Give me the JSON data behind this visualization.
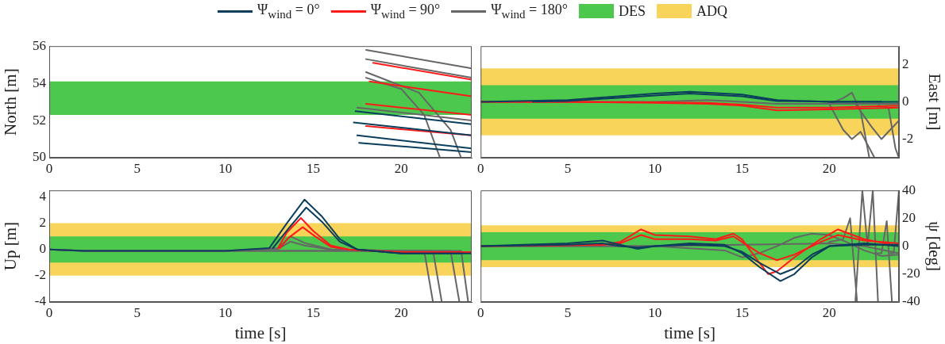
{
  "chart_data": [
    {
      "type": "line",
      "ylabel": "North [m]",
      "xlim": [
        0,
        24
      ],
      "xticks": [
        0,
        5,
        10,
        15,
        20
      ],
      "ylim": [
        50,
        56
      ],
      "yticks": [
        50,
        52,
        54,
        56
      ],
      "grid": false,
      "marker": "none",
      "line_style": "solid",
      "bands": [
        {
          "axis": "y",
          "from": 52.3,
          "to": 54.1,
          "color": "#4cc84c"
        }
      ],
      "series": [
        {
          "color": "#0b3d5c",
          "x": [
            17.5,
            24
          ],
          "values": [
            51.2,
            50.5
          ]
        },
        {
          "color": "#0b3d5c",
          "x": [
            17.3,
            24
          ],
          "values": [
            51.9,
            51.2
          ]
        },
        {
          "color": "#0b3d5c",
          "x": [
            17.6,
            24
          ],
          "values": [
            50.8,
            50.3
          ]
        },
        {
          "color": "#0b3d5c",
          "x": [
            17.4,
            24
          ],
          "values": [
            52.5,
            51.8
          ]
        },
        {
          "color": "#ff1a1a",
          "x": [
            18,
            24
          ],
          "values": [
            52.9,
            52.3
          ]
        },
        {
          "color": "#ff1a1a",
          "x": [
            18,
            24
          ],
          "values": [
            51.7,
            51.2
          ]
        },
        {
          "color": "#ff1a1a",
          "x": [
            18.2,
            24
          ],
          "values": [
            54.1,
            53.3
          ]
        },
        {
          "color": "#ff1a1a",
          "x": [
            18.4,
            24
          ],
          "values": [
            55.1,
            54.2
          ]
        },
        {
          "color": "#666666",
          "x": [
            18,
            24
          ],
          "values": [
            55.8,
            54.8
          ]
        },
        {
          "color": "#666666",
          "x": [
            18,
            24
          ],
          "values": [
            55.3,
            54.3
          ]
        },
        {
          "color": "#666666",
          "x": [
            17.5,
            24
          ],
          "values": [
            52.7,
            52.0
          ]
        },
        {
          "color": "#666666",
          "x": [
            18,
            20,
            21.3,
            22.2
          ],
          "values": [
            54.3,
            53.7,
            52.3,
            50
          ]
        },
        {
          "color": "#666666",
          "x": [
            18,
            21,
            22.8,
            23.4
          ],
          "values": [
            54.6,
            53.5,
            51.5,
            50
          ]
        }
      ]
    },
    {
      "type": "line",
      "y2label": "East [m]",
      "xlim": [
        0,
        24
      ],
      "xticks": [
        0,
        5,
        10,
        15,
        20
      ],
      "y2lim": [
        -3,
        3
      ],
      "y2ticks": [
        -2,
        0,
        2
      ],
      "grid": false,
      "marker": "none",
      "line_style": "solid",
      "legend": "top",
      "bands": [
        {
          "axis": "y2",
          "from": -0.9,
          "to": 0.9,
          "label": "DES",
          "color": "#4cc84c"
        },
        {
          "axis": "y2",
          "from": -1.8,
          "to": 1.8,
          "label": "ADQ",
          "color": "#f8d45a"
        }
      ],
      "series": [
        {
          "name": "Ψ$_{wind}$ = 0°",
          "axis": "y2",
          "color": "#0b3d5c",
          "x": [
            0,
            5,
            10,
            12,
            15,
            17,
            20,
            24
          ],
          "values": [
            0,
            0.1,
            0.45,
            0.55,
            0.4,
            0.1,
            0,
            0
          ]
        },
        {
          "axis": "y2",
          "color": "#0b3d5c",
          "x": [
            3,
            5,
            10,
            12,
            15,
            17,
            20,
            23
          ],
          "values": [
            0.02,
            0.05,
            0.35,
            0.45,
            0.3,
            0.05,
            0.02,
            0.02
          ]
        },
        {
          "name": "Ψ$_{wind}$ = 90°",
          "axis": "y2",
          "color": "#ff1a1a",
          "x": [
            0,
            5,
            10,
            13,
            15,
            17,
            20,
            24
          ],
          "values": [
            0,
            0,
            -0.05,
            -0.1,
            -0.2,
            -0.45,
            -0.4,
            -0.3
          ]
        },
        {
          "axis": "y2",
          "color": "#ff1a1a",
          "x": [
            0,
            5,
            10,
            13,
            15,
            17,
            20,
            24
          ],
          "values": [
            0,
            0,
            -0.02,
            -0.05,
            -0.15,
            -0.3,
            -0.3,
            -0.2
          ]
        },
        {
          "name": "Ψ$_{wind}$ = 180°",
          "axis": "y2",
          "color": "#666666",
          "x": [
            0,
            5,
            10,
            13,
            15,
            17,
            20,
            24
          ],
          "values": [
            0,
            0,
            0,
            0.1,
            0,
            -0.1,
            -0.1,
            -0.1
          ]
        },
        {
          "axis": "y2",
          "color": "#666666",
          "x": [
            20,
            20.8,
            21.3,
            21.8,
            22.3
          ],
          "values": [
            -0.1,
            0.2,
            0.5,
            -0.5,
            -3
          ]
        },
        {
          "axis": "y2",
          "color": "#666666",
          "x": [
            20,
            20.8,
            21.3,
            21.8,
            22.6
          ],
          "values": [
            -0.1,
            -1.5,
            -2.0,
            -1.6,
            -3
          ]
        },
        {
          "axis": "y2",
          "color": "#666666",
          "x": [
            21.5,
            22.4,
            23,
            23.5,
            24
          ],
          "values": [
            -0.1,
            -1.3,
            -2.0,
            -1.5,
            -1.0
          ]
        },
        {
          "axis": "y2",
          "color": "#666666",
          "x": [
            22.8,
            23.4,
            23.8,
            24
          ],
          "values": [
            -0.2,
            -0.3,
            -2.5,
            -3
          ]
        }
      ]
    },
    {
      "type": "line",
      "ylabel": "Up [m]",
      "xlabel": "time [s]",
      "xlim": [
        0,
        24
      ],
      "xticks": [
        0,
        5,
        10,
        15,
        20
      ],
      "ylim": [
        -4,
        4.5
      ],
      "yticks": [
        -4,
        -2,
        0,
        2,
        4
      ],
      "grid": false,
      "marker": "none",
      "line_style": "solid",
      "bands": [
        {
          "axis": "y",
          "from": -1,
          "to": 1,
          "color": "#4cc84c"
        },
        {
          "axis": "y",
          "from": -2,
          "to": 2,
          "color": "#f8d45a"
        }
      ],
      "series": [
        {
          "color": "#0b3d5c",
          "x": [
            0,
            2,
            10,
            12.5,
            13.5,
            14.5,
            15.5,
            16.5,
            17.5,
            20,
            24
          ],
          "values": [
            0,
            -0.1,
            -0.1,
            0.1,
            2,
            3.8,
            2.5,
            0.8,
            0,
            -0.3,
            -0.3
          ]
        },
        {
          "color": "#0b3d5c",
          "x": [
            12.7,
            13.6,
            14.6,
            15.5,
            16.5,
            17.5,
            20,
            23.5
          ],
          "values": [
            0.1,
            1.6,
            3.2,
            2.1,
            0.6,
            0,
            -0.3,
            -0.3
          ]
        },
        {
          "color": "#ff1a1a",
          "x": [
            13,
            13.5,
            14.3,
            15,
            16,
            17,
            20,
            24
          ],
          "values": [
            0.1,
            1.3,
            2.4,
            1.4,
            0.3,
            0,
            -0.25,
            -0.25
          ]
        },
        {
          "color": "#ff1a1a",
          "x": [
            13.1,
            13.6,
            14.4,
            15.1,
            16,
            17,
            20,
            24
          ],
          "values": [
            0.1,
            0.9,
            1.7,
            1.0,
            0.2,
            0,
            -0.2,
            -0.2
          ]
        },
        {
          "color": "#666666",
          "x": [
            0,
            2,
            10,
            13,
            13.7,
            14.5,
            16,
            20,
            21.3,
            21.8
          ],
          "values": [
            0,
            -0.1,
            -0.1,
            0.1,
            1.0,
            0.5,
            0,
            -0.1,
            -0.1,
            -4
          ]
        },
        {
          "color": "#666666",
          "x": [
            0,
            2,
            10,
            13,
            13.7,
            14.5,
            16,
            20,
            21.8,
            22.3
          ],
          "values": [
            0,
            -0.1,
            -0.1,
            0.05,
            0.6,
            0.3,
            0,
            -0.1,
            -0.1,
            -4
          ]
        },
        {
          "color": "#666666",
          "x": [
            0,
            2,
            10,
            16,
            20,
            22.8,
            23.3
          ],
          "values": [
            0,
            -0.1,
            -0.1,
            -0.1,
            -0.1,
            -0.1,
            -4
          ]
        },
        {
          "color": "#666666",
          "x": [
            0,
            2,
            10,
            16,
            20,
            23.4,
            23.8
          ],
          "values": [
            0,
            -0.1,
            -0.1,
            -0.1,
            -0.1,
            -0.1,
            -4
          ]
        }
      ]
    },
    {
      "type": "line",
      "y2label": "ψ [deg]",
      "xlabel": "time [s]",
      "xlim": [
        0,
        24
      ],
      "xticks": [
        0,
        5,
        10,
        15,
        20
      ],
      "y2lim": [
        -40,
        40
      ],
      "y2ticks": [
        -40,
        -20,
        0,
        20,
        40
      ],
      "grid": false,
      "marker": "none",
      "line_style": "solid",
      "bands": [
        {
          "axis": "y2",
          "from": -10,
          "to": 10,
          "color": "#4cc84c"
        },
        {
          "axis": "y2",
          "from": -15,
          "to": 15,
          "color": "#f8d45a"
        }
      ],
      "series": [
        {
          "axis": "y2",
          "color": "#0b3d5c",
          "x": [
            0,
            5,
            7,
            8,
            9,
            10,
            12,
            14,
            15,
            16,
            17.2,
            18,
            19,
            20,
            22,
            24
          ],
          "values": [
            0,
            2,
            4,
            1,
            -2,
            0,
            2,
            1,
            -5,
            -15,
            -25,
            -20,
            -8,
            0,
            2,
            0
          ]
        },
        {
          "axis": "y2",
          "color": "#0b3d5c",
          "x": [
            0,
            5,
            7,
            8,
            9,
            10,
            12,
            14,
            15,
            16,
            17.2,
            18,
            19,
            20,
            22,
            24
          ],
          "values": [
            0,
            1,
            2,
            0,
            -1,
            0,
            1,
            0,
            -4,
            -12,
            -20,
            -16,
            -6,
            0,
            1,
            1
          ]
        },
        {
          "axis": "y2",
          "color": "#ff1a1a",
          "x": [
            0,
            7,
            8,
            9.2,
            10,
            12,
            13.5,
            14.5,
            15,
            16,
            16.5,
            17,
            18,
            19.5,
            20.5,
            22,
            24
          ],
          "values": [
            0,
            1,
            3,
            12,
            8,
            7,
            5,
            9,
            5,
            -12,
            -20,
            -18,
            -8,
            5,
            12,
            5,
            0
          ]
        },
        {
          "axis": "y2",
          "color": "#ff1a1a",
          "x": [
            0,
            7,
            8,
            9.2,
            10,
            12,
            13.5,
            14.5,
            15,
            16,
            17,
            18,
            19.5,
            20.5,
            22,
            24
          ],
          "values": [
            0,
            1,
            2,
            8,
            5,
            5,
            4,
            7,
            3,
            -5,
            -10,
            -6,
            3,
            8,
            4,
            2
          ]
        },
        {
          "axis": "y2",
          "color": "#666666",
          "x": [
            0,
            10,
            14,
            15,
            16,
            17,
            18,
            19,
            20,
            21,
            22,
            23,
            24
          ],
          "values": [
            0,
            0,
            -3,
            -8,
            -5,
            0,
            6,
            9,
            8,
            3,
            -3,
            -7,
            -6
          ]
        },
        {
          "axis": "y2",
          "color": "#666666",
          "x": [
            0,
            10,
            15,
            20,
            22,
            24
          ],
          "values": [
            0,
            0,
            1,
            2,
            0,
            -5
          ]
        },
        {
          "axis": "y2",
          "color": "#666666",
          "x": [
            20,
            20.8,
            21.2,
            21.6
          ],
          "values": [
            3,
            5,
            20,
            -40
          ]
        },
        {
          "axis": "y2",
          "color": "#666666",
          "x": [
            21.5,
            21.9,
            22.2,
            22.5,
            22.8
          ],
          "values": [
            -40,
            40,
            0,
            40,
            -40
          ]
        },
        {
          "axis": "y2",
          "color": "#666666",
          "x": [
            22.6,
            23,
            23.3,
            23.6
          ],
          "values": [
            -5,
            -5,
            18,
            -40
          ]
        },
        {
          "axis": "y2",
          "color": "#666666",
          "x": [
            23.5,
            23.7,
            24
          ],
          "values": [
            -5,
            -5,
            40
          ]
        }
      ]
    }
  ]
}
